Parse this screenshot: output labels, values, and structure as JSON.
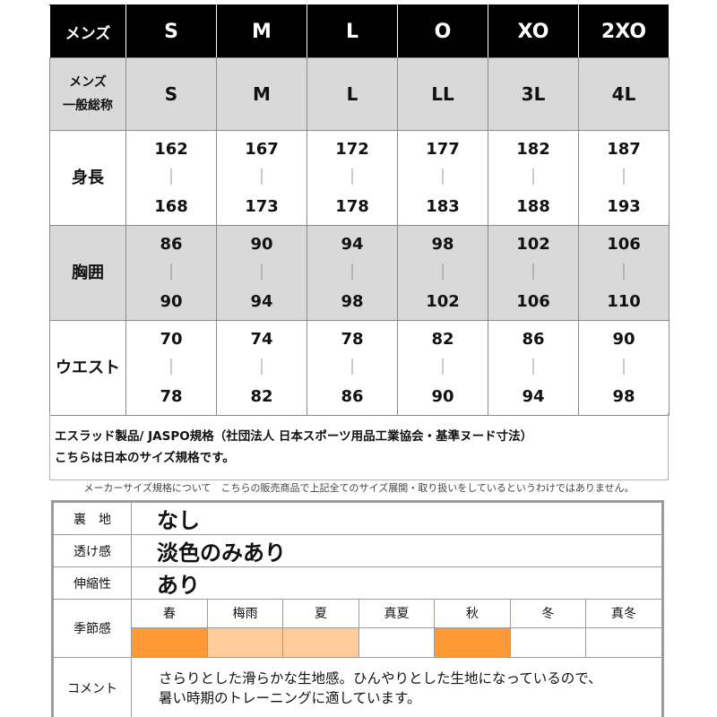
{
  "size_table": {
    "header": {
      "label": "メンズ",
      "sizes": [
        "S",
        "M",
        "L",
        "O",
        "XO",
        "2XO"
      ]
    },
    "alias": {
      "label_line1": "メンズ",
      "label_line2": "一般総称",
      "values": [
        "S",
        "M",
        "L",
        "LL",
        "3L",
        "4L"
      ]
    },
    "separator": "｜",
    "rows": [
      {
        "label": "身長",
        "ranges": [
          {
            "min": "162",
            "max": "168"
          },
          {
            "min": "167",
            "max": "173"
          },
          {
            "min": "172",
            "max": "178"
          },
          {
            "min": "177",
            "max": "183"
          },
          {
            "min": "182",
            "max": "188"
          },
          {
            "min": "187",
            "max": "193"
          }
        ]
      },
      {
        "label": "胸囲",
        "ranges": [
          {
            "min": "86",
            "max": "90"
          },
          {
            "min": "90",
            "max": "94"
          },
          {
            "min": "94",
            "max": "98"
          },
          {
            "min": "98",
            "max": "102"
          },
          {
            "min": "102",
            "max": "106"
          },
          {
            "min": "106",
            "max": "110"
          }
        ]
      },
      {
        "label": "ウエスト",
        "ranges": [
          {
            "min": "70",
            "max": "78"
          },
          {
            "min": "74",
            "max": "82"
          },
          {
            "min": "78",
            "max": "86"
          },
          {
            "min": "82",
            "max": "90"
          },
          {
            "min": "86",
            "max": "94"
          },
          {
            "min": "90",
            "max": "98"
          }
        ]
      }
    ]
  },
  "notes": {
    "line1": "エスラッド製品/ JASPO規格（社団法人 日本スポーツ用品工業協会・基準ヌード寸法）",
    "line2": "こちらは日本のサイズ規格です。",
    "maker_note": "メーカーサイズ規格について　こちらの販売商品で上記全てのサイズ展開・取り扱いをしているというわけではありません。"
  },
  "spec": {
    "lining": {
      "label": "裏　地",
      "value": "なし"
    },
    "sheerness": {
      "label": "透け感",
      "value": "淡色のみあり"
    },
    "stretch": {
      "label": "伸縮性",
      "value": "あり"
    },
    "season": {
      "label": "季節感",
      "seasons": [
        {
          "name": "春",
          "color": "#ff9933"
        },
        {
          "name": "梅雨",
          "color": "#ffcc99"
        },
        {
          "name": "夏",
          "color": "#ffcc99"
        },
        {
          "name": "真夏",
          "color": "#ffffff"
        },
        {
          "name": "秋",
          "color": "#ff9933"
        },
        {
          "name": "冬",
          "color": "#ffffff"
        },
        {
          "name": "真冬",
          "color": "#ffffff"
        }
      ]
    },
    "comment": {
      "label": "コメント",
      "line1": "さらりとした滑らかな生地感。ひんやりとした生地になっているので、",
      "line2": "暑い時期のトレーニングに適しています。"
    }
  }
}
